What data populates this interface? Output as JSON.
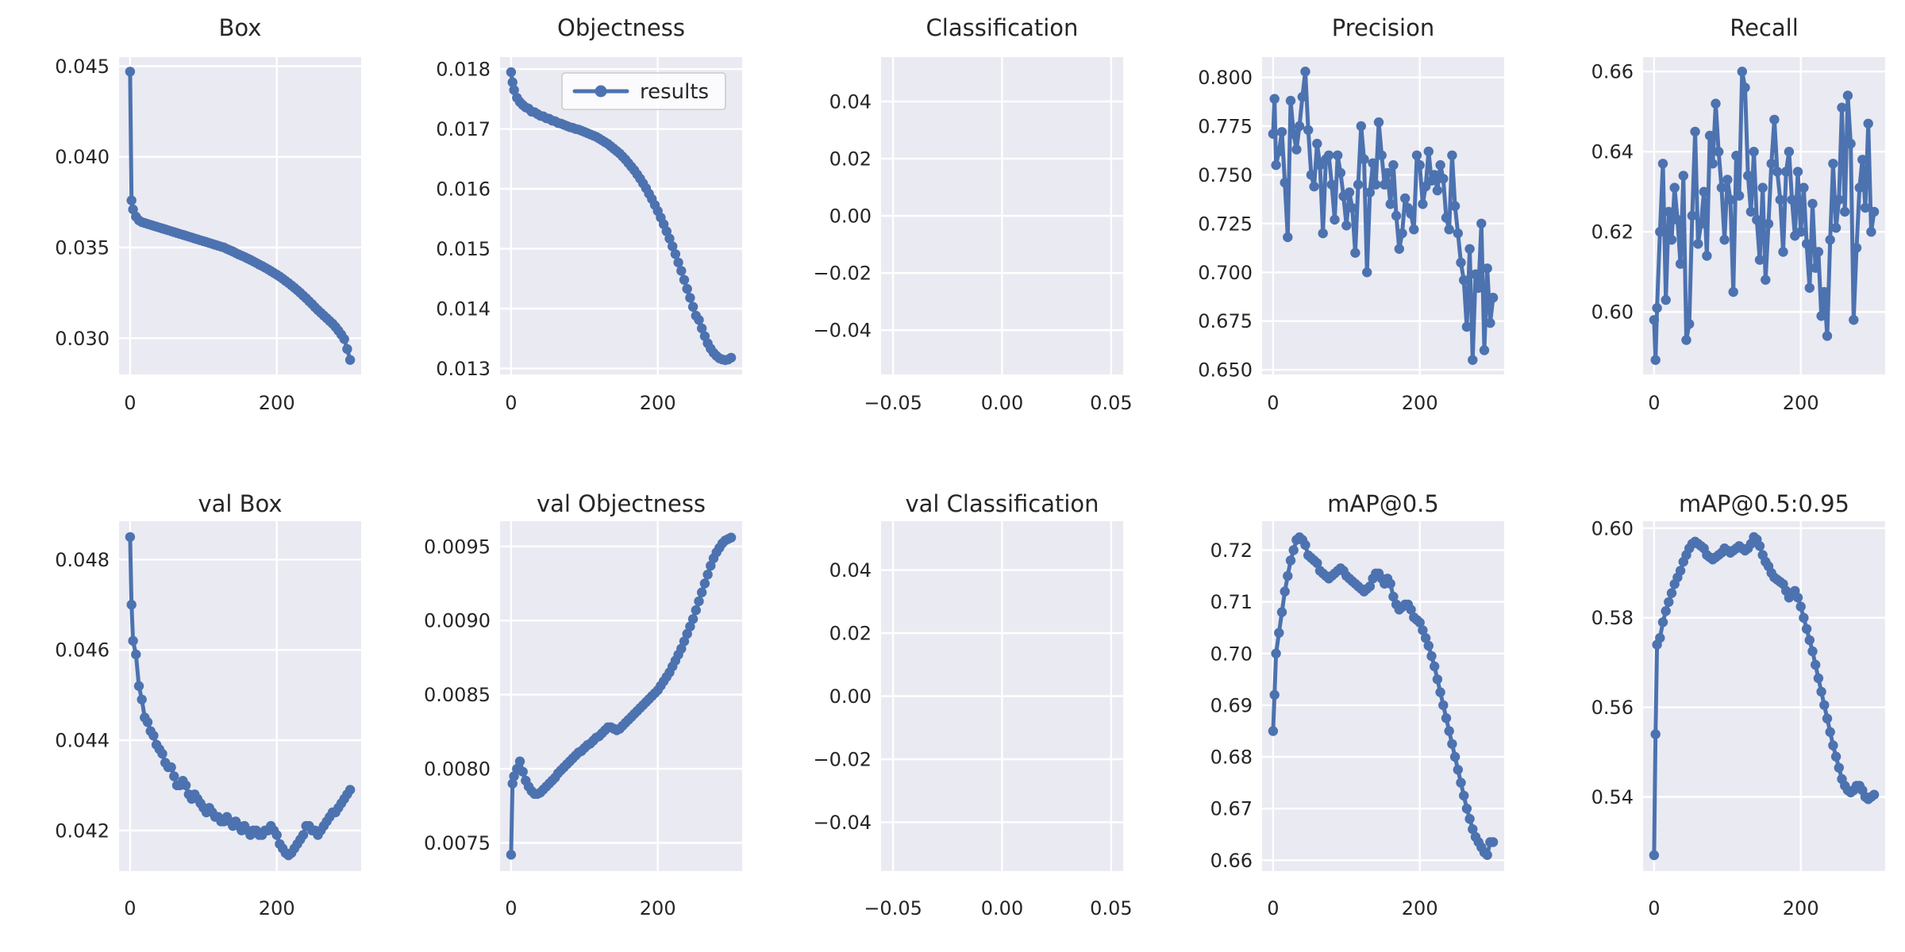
{
  "figure": {
    "background": "#ffffff",
    "axes_background": "#eaeaf2",
    "grid_color": "#ffffff",
    "line_color": "#4c72b0",
    "text_color": "#262626",
    "legend_face": "rgba(255,255,255,0.8)",
    "legend_edge": "#cccccc"
  },
  "chart_data": {
    "type": "line",
    "rows": 2,
    "cols": 5,
    "legend_position": "upper-right-of-objectness-subplot",
    "grid": "on",
    "x_epochs": [
      0,
      2,
      4,
      8,
      12,
      16,
      20,
      24,
      28,
      32,
      36,
      40,
      44,
      48,
      52,
      56,
      60,
      64,
      68,
      72,
      76,
      80,
      84,
      88,
      92,
      96,
      100,
      104,
      108,
      112,
      116,
      120,
      124,
      128,
      132,
      136,
      140,
      144,
      148,
      152,
      156,
      160,
      164,
      168,
      172,
      176,
      180,
      184,
      188,
      192,
      196,
      200,
      204,
      208,
      212,
      216,
      220,
      224,
      228,
      232,
      236,
      240,
      244,
      248,
      252,
      256,
      260,
      264,
      268,
      272,
      276,
      280,
      284,
      288,
      292,
      296,
      300
    ],
    "xlim": [
      -15,
      315
    ],
    "x_ticks": [
      0,
      200
    ],
    "x_tick_labels": [
      "0",
      "200"
    ],
    "empty_xlim": [
      -0.0555,
      0.0555
    ],
    "empty_x_ticks": [
      -0.05,
      0.0,
      0.05
    ],
    "empty_x_tick_labels": [
      "−0.05",
      "0.00",
      "0.05"
    ],
    "series_name": "results",
    "subplots": [
      {
        "title": "Box",
        "ylim": [
          0.028,
          0.0455
        ],
        "y_ticks": [
          0.03,
          0.035,
          0.04,
          0.045
        ],
        "y_tick_labels": [
          "0.030",
          "0.035",
          "0.040",
          "0.045"
        ],
        "y": [
          0.0447,
          0.0376,
          0.0371,
          0.0367,
          0.0365,
          0.0364,
          0.03635,
          0.0363,
          0.03625,
          0.0362,
          0.03615,
          0.0361,
          0.03605,
          0.036,
          0.03595,
          0.0359,
          0.03585,
          0.0358,
          0.03575,
          0.0357,
          0.03565,
          0.0356,
          0.03555,
          0.0355,
          0.03545,
          0.0354,
          0.03535,
          0.0353,
          0.03525,
          0.0352,
          0.03515,
          0.0351,
          0.03505,
          0.035,
          0.03492,
          0.03485,
          0.03478,
          0.0347,
          0.03462,
          0.03455,
          0.03448,
          0.0344,
          0.03432,
          0.03424,
          0.03415,
          0.03406,
          0.03398,
          0.03389,
          0.0338,
          0.0337,
          0.0336,
          0.0335,
          0.0334,
          0.03328,
          0.03316,
          0.03304,
          0.03291,
          0.03278,
          0.03264,
          0.0325,
          0.03235,
          0.0322,
          0.03204,
          0.03188,
          0.03171,
          0.03155,
          0.0314,
          0.03125,
          0.0311,
          0.03095,
          0.0308,
          0.03062,
          0.03042,
          0.0302,
          0.02995,
          0.0294,
          0.0288
        ]
      },
      {
        "title": "Objectness",
        "legend": "results",
        "ylim": [
          0.0129,
          0.0182
        ],
        "y_ticks": [
          0.013,
          0.014,
          0.015,
          0.016,
          0.017,
          0.018
        ],
        "y_tick_labels": [
          "0.013",
          "0.014",
          "0.015",
          "0.016",
          "0.017",
          "0.018"
        ],
        "y": [
          0.01795,
          0.01778,
          0.01765,
          0.01752,
          0.01745,
          0.0174,
          0.01736,
          0.01734,
          0.01729,
          0.01728,
          0.01725,
          0.01722,
          0.01721,
          0.01718,
          0.01717,
          0.01714,
          0.01713,
          0.0171,
          0.01709,
          0.01707,
          0.01705,
          0.01703,
          0.01702,
          0.017,
          0.01699,
          0.01697,
          0.01695,
          0.01693,
          0.01691,
          0.01689,
          0.01687,
          0.01684,
          0.01681,
          0.01678,
          0.01675,
          0.01671,
          0.01667,
          0.01663,
          0.01659,
          0.01654,
          0.01649,
          0.01643,
          0.01637,
          0.01631,
          0.01624,
          0.01617,
          0.01609,
          0.01601,
          0.01592,
          0.01583,
          0.01573,
          0.01563,
          0.01552,
          0.01541,
          0.01529,
          0.01517,
          0.01504,
          0.01491,
          0.01477,
          0.01463,
          0.01448,
          0.01433,
          0.01418,
          0.01403,
          0.01388,
          0.01381,
          0.01367,
          0.01354,
          0.01342,
          0.01333,
          0.01326,
          0.01321,
          0.01317,
          0.01315,
          0.01314,
          0.01315,
          0.01318
        ]
      },
      {
        "title": "Classification",
        "empty": true,
        "ylim": [
          -0.0555,
          0.0555
        ],
        "y_ticks": [
          -0.04,
          -0.02,
          0.0,
          0.02,
          0.04
        ],
        "y_tick_labels": [
          "−0.04",
          "−0.02",
          "0.00",
          "0.02",
          "0.04"
        ],
        "y": null
      },
      {
        "title": "Precision",
        "ylim": [
          0.6476,
          0.8104
        ],
        "y_ticks": [
          0.65,
          0.675,
          0.7,
          0.725,
          0.75,
          0.775,
          0.8
        ],
        "y_tick_labels": [
          "0.650",
          "0.675",
          "0.700",
          "0.725",
          "0.750",
          "0.775",
          "0.800"
        ],
        "y": [
          0.771,
          0.789,
          0.755,
          0.762,
          0.772,
          0.746,
          0.718,
          0.788,
          0.771,
          0.763,
          0.775,
          0.79,
          0.803,
          0.773,
          0.75,
          0.744,
          0.766,
          0.755,
          0.72,
          0.758,
          0.76,
          0.745,
          0.727,
          0.76,
          0.751,
          0.739,
          0.724,
          0.741,
          0.733,
          0.71,
          0.745,
          0.775,
          0.758,
          0.7,
          0.741,
          0.756,
          0.745,
          0.777,
          0.76,
          0.745,
          0.751,
          0.735,
          0.755,
          0.729,
          0.712,
          0.72,
          0.738,
          0.733,
          0.73,
          0.722,
          0.76,
          0.755,
          0.735,
          0.744,
          0.762,
          0.747,
          0.75,
          0.742,
          0.755,
          0.748,
          0.728,
          0.722,
          0.76,
          0.734,
          0.72,
          0.705,
          0.696,
          0.672,
          0.712,
          0.655,
          0.699,
          0.692,
          0.725,
          0.66,
          0.702,
          0.674,
          0.687
        ]
      },
      {
        "title": "Recall",
        "ylim": [
          0.5844,
          0.6636
        ],
        "y_ticks": [
          0.6,
          0.62,
          0.64,
          0.66
        ],
        "y_tick_labels": [
          "0.60",
          "0.62",
          "0.64",
          "0.66"
        ],
        "y": [
          0.598,
          0.588,
          0.601,
          0.62,
          0.637,
          0.603,
          0.625,
          0.618,
          0.631,
          0.623,
          0.612,
          0.634,
          0.593,
          0.597,
          0.624,
          0.645,
          0.617,
          0.622,
          0.63,
          0.614,
          0.644,
          0.637,
          0.652,
          0.64,
          0.631,
          0.618,
          0.633,
          0.628,
          0.605,
          0.639,
          0.629,
          0.66,
          0.656,
          0.634,
          0.625,
          0.64,
          0.623,
          0.613,
          0.631,
          0.608,
          0.622,
          0.637,
          0.648,
          0.635,
          0.628,
          0.615,
          0.635,
          0.64,
          0.628,
          0.619,
          0.635,
          0.62,
          0.631,
          0.617,
          0.606,
          0.627,
          0.611,
          0.615,
          0.599,
          0.605,
          0.594,
          0.618,
          0.637,
          0.621,
          0.628,
          0.651,
          0.625,
          0.654,
          0.642,
          0.598,
          0.616,
          0.631,
          0.638,
          0.626,
          0.647,
          0.62,
          0.625
        ]
      },
      {
        "title": "val Box",
        "ylim": [
          0.0411,
          0.04885
        ],
        "y_ticks": [
          0.042,
          0.044,
          0.046,
          0.048
        ],
        "y_tick_labels": [
          "0.042",
          "0.044",
          "0.046",
          "0.048"
        ],
        "y": [
          0.0485,
          0.047,
          0.0462,
          0.0459,
          0.0452,
          0.0449,
          0.0445,
          0.0444,
          0.0442,
          0.0441,
          0.0439,
          0.0438,
          0.0437,
          0.0435,
          0.0434,
          0.0434,
          0.0432,
          0.043,
          0.043,
          0.0431,
          0.043,
          0.0428,
          0.0427,
          0.0428,
          0.0427,
          0.0426,
          0.0425,
          0.0424,
          0.0425,
          0.0424,
          0.0423,
          0.0423,
          0.0422,
          0.0422,
          0.0423,
          0.0422,
          0.0421,
          0.0422,
          0.0421,
          0.042,
          0.0421,
          0.042,
          0.0419,
          0.042,
          0.042,
          0.0419,
          0.0419,
          0.042,
          0.042,
          0.0421,
          0.042,
          0.0419,
          0.0417,
          0.0416,
          0.0415,
          0.04145,
          0.0415,
          0.0416,
          0.0417,
          0.0418,
          0.0419,
          0.0421,
          0.0421,
          0.042,
          0.042,
          0.0419,
          0.042,
          0.0421,
          0.0422,
          0.0423,
          0.0424,
          0.0424,
          0.0425,
          0.0426,
          0.0427,
          0.0428,
          0.0429
        ]
      },
      {
        "title": "val Objectness",
        "ylim": [
          0.00731,
          0.00967
        ],
        "y_ticks": [
          0.0075,
          0.008,
          0.0085,
          0.009,
          0.0095
        ],
        "y_tick_labels": [
          "0.0075",
          "0.0080",
          "0.0085",
          "0.0090",
          "0.0095"
        ],
        "y": [
          0.00742,
          0.0079,
          0.00795,
          0.008,
          0.00805,
          0.00798,
          0.00792,
          0.00788,
          0.00785,
          0.00783,
          0.00783,
          0.00784,
          0.00786,
          0.00788,
          0.0079,
          0.00792,
          0.00794,
          0.00797,
          0.00799,
          0.00801,
          0.00803,
          0.00805,
          0.00807,
          0.00809,
          0.00811,
          0.00812,
          0.00814,
          0.00816,
          0.00817,
          0.00819,
          0.00821,
          0.00822,
          0.00824,
          0.00826,
          0.00828,
          0.00828,
          0.00827,
          0.00826,
          0.00827,
          0.00829,
          0.00831,
          0.00833,
          0.00835,
          0.00837,
          0.00839,
          0.00841,
          0.00843,
          0.00845,
          0.00847,
          0.00849,
          0.00851,
          0.00853,
          0.00856,
          0.00859,
          0.00862,
          0.00865,
          0.00869,
          0.00873,
          0.00877,
          0.00881,
          0.00886,
          0.00891,
          0.00896,
          0.00901,
          0.00907,
          0.00913,
          0.00919,
          0.00925,
          0.00931,
          0.00937,
          0.00942,
          0.00946,
          0.00949,
          0.00952,
          0.00954,
          0.00955,
          0.00956
        ]
      },
      {
        "title": "val Classification",
        "empty": true,
        "ylim": [
          -0.0555,
          0.0555
        ],
        "y_ticks": [
          -0.04,
          -0.02,
          0.0,
          0.02,
          0.04
        ],
        "y_tick_labels": [
          "−0.04",
          "−0.02",
          "0.00",
          "0.02",
          "0.04"
        ],
        "y": null
      },
      {
        "title": "mAP@0.5",
        "ylim": [
          0.6579,
          0.7256
        ],
        "y_ticks": [
          0.66,
          0.67,
          0.68,
          0.69,
          0.7,
          0.71,
          0.72
        ],
        "y_tick_labels": [
          "0.66",
          "0.67",
          "0.68",
          "0.69",
          "0.70",
          "0.71",
          "0.72"
        ],
        "y": [
          0.685,
          0.692,
          0.7,
          0.704,
          0.708,
          0.712,
          0.715,
          0.718,
          0.72,
          0.722,
          0.7225,
          0.722,
          0.721,
          0.719,
          0.7185,
          0.718,
          0.7175,
          0.716,
          0.7155,
          0.715,
          0.7145,
          0.715,
          0.7155,
          0.716,
          0.7165,
          0.716,
          0.715,
          0.7145,
          0.714,
          0.7135,
          0.713,
          0.7125,
          0.712,
          0.7125,
          0.713,
          0.7145,
          0.7155,
          0.7155,
          0.7145,
          0.7135,
          0.7145,
          0.7135,
          0.711,
          0.7095,
          0.7085,
          0.709,
          0.7095,
          0.7095,
          0.7085,
          0.707,
          0.7065,
          0.706,
          0.7045,
          0.703,
          0.7015,
          0.6995,
          0.6975,
          0.695,
          0.6925,
          0.69,
          0.6875,
          0.685,
          0.6825,
          0.68,
          0.6775,
          0.675,
          0.6725,
          0.67,
          0.668,
          0.666,
          0.6645,
          0.6635,
          0.6625,
          0.6615,
          0.661,
          0.6635,
          0.6635
        ]
      },
      {
        "title": "mAP@0.5:0.95",
        "ylim": [
          0.52345,
          0.60155
        ],
        "y_ticks": [
          0.54,
          0.56,
          0.58,
          0.6
        ],
        "y_tick_labels": [
          "0.54",
          "0.56",
          "0.58",
          "0.60"
        ],
        "y": [
          0.527,
          0.554,
          0.574,
          0.5755,
          0.579,
          0.5815,
          0.5835,
          0.5855,
          0.5875,
          0.589,
          0.5905,
          0.5925,
          0.594,
          0.5955,
          0.5965,
          0.597,
          0.5965,
          0.596,
          0.5955,
          0.594,
          0.5935,
          0.593,
          0.5935,
          0.594,
          0.5945,
          0.5955,
          0.595,
          0.5945,
          0.595,
          0.5955,
          0.596,
          0.5955,
          0.595,
          0.5955,
          0.5965,
          0.598,
          0.5975,
          0.596,
          0.594,
          0.5925,
          0.5915,
          0.59,
          0.589,
          0.5885,
          0.588,
          0.5875,
          0.586,
          0.5845,
          0.5855,
          0.586,
          0.5845,
          0.5825,
          0.58,
          0.5775,
          0.575,
          0.5725,
          0.5695,
          0.5665,
          0.5635,
          0.5605,
          0.5575,
          0.5545,
          0.5515,
          0.549,
          0.5465,
          0.544,
          0.5425,
          0.5415,
          0.541,
          0.5415,
          0.5425,
          0.5425,
          0.5415,
          0.54,
          0.5395,
          0.54,
          0.5405
        ]
      }
    ]
  }
}
